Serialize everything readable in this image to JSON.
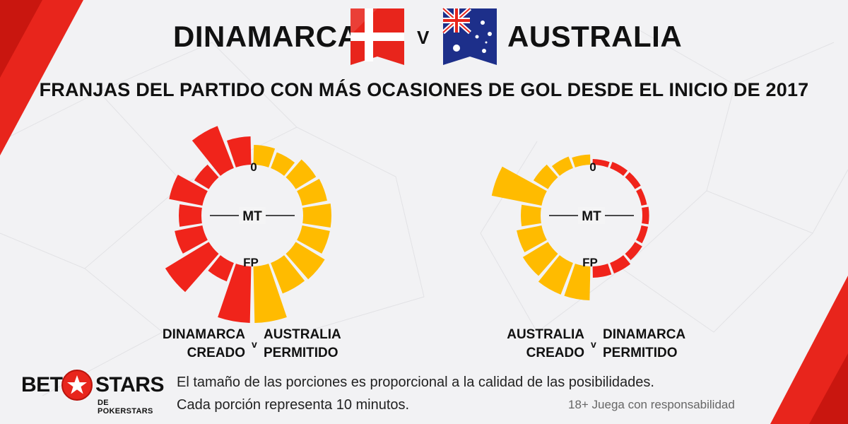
{
  "header": {
    "team1": "DINAMARCA",
    "vs": "V",
    "team2": "AUSTRALIA",
    "subtitle": "FRANJAS DEL PARTIDO CON MÁS OCASIONES DE GOL DESDE EL INICIO DE 2017"
  },
  "colors": {
    "red": "#f0241b",
    "yellow": "#ffbb00",
    "accent_corner": "#e8251c"
  },
  "chart_data": [
    {
      "type": "radial-bar",
      "unit": "10-minute slice",
      "axis_labels": {
        "start": "0",
        "half": "MT",
        "end": "FP"
      },
      "left_series": {
        "caption_line1": "DINAMARCA",
        "caption_line2": "CREADO",
        "color": "#f0241b",
        "values": [
          0.5,
          0.8,
          0.3,
          0.6,
          0.4,
          0.5,
          0.9,
          0.35,
          1.0
        ]
      },
      "right_series": {
        "caption_line1": "AUSTRALIA",
        "caption_line2": "PERMITIDO",
        "color": "#ffbb00",
        "values": [
          0.35,
          0.3,
          0.42,
          0.45,
          0.5,
          0.5,
          0.6,
          0.58,
          1.0
        ]
      },
      "caption_vs": "v"
    },
    {
      "type": "radial-bar",
      "unit": "10-minute slice",
      "axis_labels": {
        "start": "0",
        "half": "MT",
        "end": "FP"
      },
      "left_series": {
        "caption_line1": "AUSTRALIA",
        "caption_line2": "CREADO",
        "color": "#ffbb00",
        "values": [
          0.18,
          0.22,
          0.3,
          0.9,
          0.35,
          0.45,
          0.52,
          0.6,
          0.6
        ]
      },
      "right_series": {
        "caption_line1": "DINAMARCA",
        "caption_line2": "PERMITIDO",
        "color": "#f0241b",
        "values": [
          0.1,
          0.12,
          0.12,
          0.1,
          0.12,
          0.12,
          0.15,
          0.2,
          0.2
        ]
      },
      "caption_vs": "v"
    }
  ],
  "footer": {
    "logo_bet": "BET",
    "logo_stars": "STARS",
    "logo_sub": "DE POKERSTARS",
    "note_line1": "El tamaño de las porciones es proporcional a la calidad de las posibilidades.",
    "note_line2": "Cada porción representa 10 minutos.",
    "legal": "18+ Juega con responsabilidad"
  }
}
